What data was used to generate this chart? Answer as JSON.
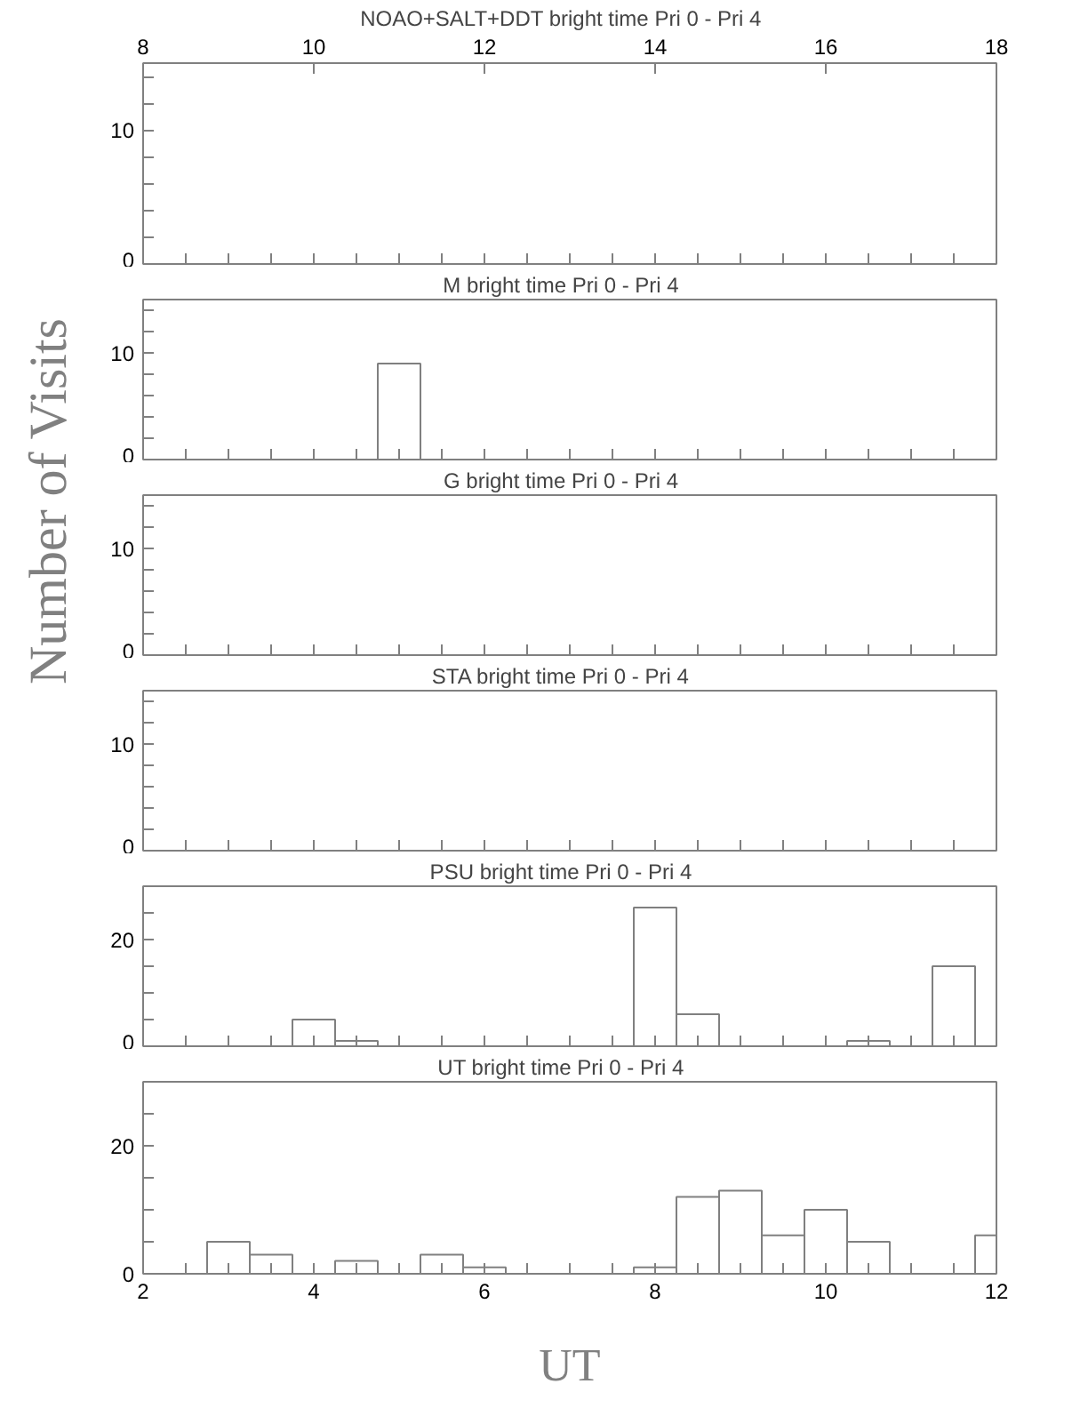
{
  "chart_data": [
    {
      "type": "histogram",
      "title": "NOAO+SALT+DDT    bright time Pri 0 - Pri 4",
      "ylabel": "Number of Visits",
      "color": "#808080",
      "bins": [
        2.25,
        2.75,
        3.25,
        3.75,
        4.25,
        4.75,
        5.25,
        5.75,
        6.25,
        6.75,
        7.25,
        7.75,
        8.25,
        8.75,
        9.25,
        9.75,
        10.25,
        10.75,
        11.25,
        11.75,
        12
      ],
      "values": [
        0,
        0,
        0,
        0,
        0,
        0,
        0,
        0,
        0,
        0,
        0,
        0,
        0,
        0,
        0,
        0,
        0,
        0,
        0,
        0
      ],
      "xlim": [
        2,
        12
      ],
      "ylim": [
        0,
        15
      ],
      "xticks": [
        {
          "value": 2,
          "label": null
        },
        {
          "value": 2.5,
          "label": null
        },
        {
          "value": 3,
          "label": null
        },
        {
          "value": 3.5,
          "label": null
        },
        {
          "value": 4,
          "label": null
        },
        {
          "value": 4.5,
          "label": null
        },
        {
          "value": 5,
          "label": null
        },
        {
          "value": 5.5,
          "label": null
        },
        {
          "value": 6,
          "label": null
        },
        {
          "value": 6.5,
          "label": null
        },
        {
          "value": 7,
          "label": null
        },
        {
          "value": 7.5,
          "label": null
        },
        {
          "value": 8,
          "label": null
        },
        {
          "value": 8.5,
          "label": null
        },
        {
          "value": 9,
          "label": null
        },
        {
          "value": 9.5,
          "label": null
        },
        {
          "value": 10,
          "label": null
        },
        {
          "value": 10.5,
          "label": null
        },
        {
          "value": 11,
          "label": null
        },
        {
          "value": 11.5,
          "label": null
        },
        {
          "value": 12,
          "label": null
        }
      ],
      "x2lim": [
        8,
        18
      ],
      "x2ticks": [
        8,
        10,
        12,
        14,
        16,
        18
      ],
      "yticks": [
        0,
        {
          "value": 2,
          "label": null
        },
        {
          "value": 4,
          "label": null
        },
        {
          "value": 6,
          "label": null
        },
        {
          "value": 8,
          "label": null
        },
        10,
        {
          "value": 12,
          "label": null
        },
        {
          "value": 14,
          "label": null
        }
      ],
      "tick_labels": "y"
    },
    {
      "type": "histogram",
      "title": "M    bright time Pri 0 - Pri 4",
      "color": "#808080",
      "bins": [
        2.25,
        2.75,
        3.25,
        3.75,
        4.25,
        4.75,
        5.25,
        5.75,
        6.25,
        6.75,
        7.25,
        7.75,
        8.25,
        8.75,
        9.25,
        9.75,
        10.25,
        10.75,
        11.25,
        11.75,
        12
      ],
      "values": [
        0,
        0,
        0,
        0,
        0,
        9,
        0,
        0,
        0,
        0,
        0,
        0,
        0,
        0,
        0,
        0,
        0,
        0,
        0,
        0
      ],
      "xlim": [
        2,
        12
      ],
      "ylim": [
        0,
        15
      ],
      "xticks": [
        {
          "value": 2,
          "label": null
        },
        {
          "value": 2.5,
          "label": null
        },
        {
          "value": 3,
          "label": null
        },
        {
          "value": 3.5,
          "label": null
        },
        {
          "value": 4,
          "label": null
        },
        {
          "value": 4.5,
          "label": null
        },
        {
          "value": 5,
          "label": null
        },
        {
          "value": 5.5,
          "label": null
        },
        {
          "value": 6,
          "label": null
        },
        {
          "value": 6.5,
          "label": null
        },
        {
          "value": 7,
          "label": null
        },
        {
          "value": 7.5,
          "label": null
        },
        {
          "value": 8,
          "label": null
        },
        {
          "value": 8.5,
          "label": null
        },
        {
          "value": 9,
          "label": null
        },
        {
          "value": 9.5,
          "label": null
        },
        {
          "value": 10,
          "label": null
        },
        {
          "value": 10.5,
          "label": null
        },
        {
          "value": 11,
          "label": null
        },
        {
          "value": 11.5,
          "label": null
        },
        {
          "value": 12,
          "label": null
        }
      ],
      "yticks": [
        0,
        {
          "value": 2,
          "label": null
        },
        {
          "value": 4,
          "label": null
        },
        {
          "value": 6,
          "label": null
        },
        {
          "value": 8,
          "label": null
        },
        10,
        {
          "value": 12,
          "label": null
        },
        {
          "value": 14,
          "label": null
        }
      ],
      "tick_labels": "y"
    },
    {
      "type": "histogram",
      "title": "G    bright time Pri 0 - Pri 4",
      "color": "#808080",
      "bins": [
        2.25,
        2.75,
        3.25,
        3.75,
        4.25,
        4.75,
        5.25,
        5.75,
        6.25,
        6.75,
        7.25,
        7.75,
        8.25,
        8.75,
        9.25,
        9.75,
        10.25,
        10.75,
        11.25,
        11.75,
        12
      ],
      "values": [
        0,
        0,
        0,
        0,
        0,
        0,
        0,
        0,
        0,
        0,
        0,
        0,
        0,
        0,
        0,
        0,
        0,
        0,
        0,
        0
      ],
      "xlim": [
        2,
        12
      ],
      "ylim": [
        0,
        15
      ],
      "xticks": [
        {
          "value": 2,
          "label": null
        },
        {
          "value": 2.5,
          "label": null
        },
        {
          "value": 3,
          "label": null
        },
        {
          "value": 3.5,
          "label": null
        },
        {
          "value": 4,
          "label": null
        },
        {
          "value": 4.5,
          "label": null
        },
        {
          "value": 5,
          "label": null
        },
        {
          "value": 5.5,
          "label": null
        },
        {
          "value": 6,
          "label": null
        },
        {
          "value": 6.5,
          "label": null
        },
        {
          "value": 7,
          "label": null
        },
        {
          "value": 7.5,
          "label": null
        },
        {
          "value": 8,
          "label": null
        },
        {
          "value": 8.5,
          "label": null
        },
        {
          "value": 9,
          "label": null
        },
        {
          "value": 9.5,
          "label": null
        },
        {
          "value": 10,
          "label": null
        },
        {
          "value": 10.5,
          "label": null
        },
        {
          "value": 11,
          "label": null
        },
        {
          "value": 11.5,
          "label": null
        },
        {
          "value": 12,
          "label": null
        }
      ],
      "yticks": [
        0,
        {
          "value": 2,
          "label": null
        },
        {
          "value": 4,
          "label": null
        },
        {
          "value": 6,
          "label": null
        },
        {
          "value": 8,
          "label": null
        },
        10,
        {
          "value": 12,
          "label": null
        },
        {
          "value": 14,
          "label": null
        }
      ],
      "tick_labels": "y"
    },
    {
      "type": "histogram",
      "title": "STA    bright time Pri 0 - Pri 4",
      "color": "#808080",
      "bins": [
        2.25,
        2.75,
        3.25,
        3.75,
        4.25,
        4.75,
        5.25,
        5.75,
        6.25,
        6.75,
        7.25,
        7.75,
        8.25,
        8.75,
        9.25,
        9.75,
        10.25,
        10.75,
        11.25,
        11.75,
        12
      ],
      "values": [
        0,
        0,
        0,
        0,
        0,
        0,
        0,
        0,
        0,
        0,
        0,
        0,
        0,
        0,
        0,
        0,
        0,
        0,
        0,
        0
      ],
      "xlim": [
        2,
        12
      ],
      "ylim": [
        0,
        15
      ],
      "xticks": [
        {
          "value": 2,
          "label": null
        },
        {
          "value": 2.5,
          "label": null
        },
        {
          "value": 3,
          "label": null
        },
        {
          "value": 3.5,
          "label": null
        },
        {
          "value": 4,
          "label": null
        },
        {
          "value": 4.5,
          "label": null
        },
        {
          "value": 5,
          "label": null
        },
        {
          "value": 5.5,
          "label": null
        },
        {
          "value": 6,
          "label": null
        },
        {
          "value": 6.5,
          "label": null
        },
        {
          "value": 7,
          "label": null
        },
        {
          "value": 7.5,
          "label": null
        },
        {
          "value": 8,
          "label": null
        },
        {
          "value": 8.5,
          "label": null
        },
        {
          "value": 9,
          "label": null
        },
        {
          "value": 9.5,
          "label": null
        },
        {
          "value": 10,
          "label": null
        },
        {
          "value": 10.5,
          "label": null
        },
        {
          "value": 11,
          "label": null
        },
        {
          "value": 11.5,
          "label": null
        },
        {
          "value": 12,
          "label": null
        }
      ],
      "yticks": [
        0,
        {
          "value": 2,
          "label": null
        },
        {
          "value": 4,
          "label": null
        },
        {
          "value": 6,
          "label": null
        },
        {
          "value": 8,
          "label": null
        },
        10,
        {
          "value": 12,
          "label": null
        },
        {
          "value": 14,
          "label": null
        }
      ],
      "tick_labels": "y"
    },
    {
      "type": "histogram",
      "title": "PSU    bright time Pri 0 - Pri 4",
      "color": "#808080",
      "bins": [
        2.25,
        2.75,
        3.25,
        3.75,
        4.25,
        4.75,
        5.25,
        5.75,
        6.25,
        6.75,
        7.25,
        7.75,
        8.25,
        8.75,
        9.25,
        9.75,
        10.25,
        10.75,
        11.25,
        11.75,
        12
      ],
      "values": [
        0,
        0,
        0,
        5,
        1,
        0,
        0,
        0,
        0,
        0,
        0,
        26,
        6,
        0,
        0,
        null,
        1,
        null,
        15,
        0
      ],
      "xlim": [
        2,
        12
      ],
      "ylim": [
        0,
        30
      ],
      "xticks": [
        {
          "value": 2,
          "label": null
        },
        {
          "value": 2.5,
          "label": null
        },
        {
          "value": 3,
          "label": null
        },
        {
          "value": 3.5,
          "label": null
        },
        {
          "value": 4,
          "label": null
        },
        {
          "value": 4.5,
          "label": null
        },
        {
          "value": 5,
          "label": null
        },
        {
          "value": 5.5,
          "label": null
        },
        {
          "value": 6,
          "label": null
        },
        {
          "value": 6.5,
          "label": null
        },
        {
          "value": 7,
          "label": null
        },
        {
          "value": 7.5,
          "label": null
        },
        {
          "value": 8,
          "label": null
        },
        {
          "value": 8.5,
          "label": null
        },
        {
          "value": 9,
          "label": null
        },
        {
          "value": 9.5,
          "label": null
        },
        {
          "value": 10,
          "label": null
        },
        {
          "value": 10.5,
          "label": null
        },
        {
          "value": 11,
          "label": null
        },
        {
          "value": 11.5,
          "label": null
        },
        {
          "value": 12,
          "label": null
        }
      ],
      "yticks": [
        0,
        {
          "value": 5,
          "label": null
        },
        {
          "value": 10,
          "label": null
        },
        {
          "value": 15,
          "label": null
        },
        20,
        {
          "value": 25,
          "label": null
        }
      ],
      "tick_labels": "y"
    },
    {
      "type": "histogram",
      "title": "UT    bright time Pri 0 - Pri 4",
      "xlabel": "UT",
      "color": "#808080",
      "bins": [
        2.25,
        2.75,
        3.25,
        3.75,
        4.25,
        4.75,
        5.25,
        5.75,
        6.25,
        6.75,
        7.25,
        7.75,
        8.25,
        8.75,
        9.25,
        9.75,
        10.25,
        10.75,
        11.25,
        11.75,
        12
      ],
      "values": [
        0,
        5,
        3,
        0,
        2,
        0,
        3,
        1,
        0,
        0,
        0,
        1,
        12,
        13,
        6,
        10,
        5,
        0,
        0,
        6
      ],
      "xlim": [
        2,
        12
      ],
      "ylim": [
        0,
        30
      ],
      "xticks": [
        2,
        {
          "value": 2.5,
          "label": null
        },
        {
          "value": 3,
          "label": null
        },
        {
          "value": 3.5,
          "label": null
        },
        4,
        {
          "value": 4.5,
          "label": null
        },
        {
          "value": 5,
          "label": null
        },
        {
          "value": 5.5,
          "label": null
        },
        6,
        {
          "value": 6.5,
          "label": null
        },
        {
          "value": 7,
          "label": null
        },
        {
          "value": 7.5,
          "label": null
        },
        8,
        {
          "value": 8.5,
          "label": null
        },
        {
          "value": 9,
          "label": null
        },
        {
          "value": 9.5,
          "label": null
        },
        10,
        {
          "value": 10.5,
          "label": null
        },
        {
          "value": 11,
          "label": null
        },
        {
          "value": 11.5,
          "label": null
        },
        12
      ],
      "yticks": [
        0,
        {
          "value": 5,
          "label": null
        },
        {
          "value": 10,
          "label": null
        },
        {
          "value": 15,
          "label": null
        },
        20,
        {
          "value": 25,
          "label": null
        }
      ]
    }
  ]
}
